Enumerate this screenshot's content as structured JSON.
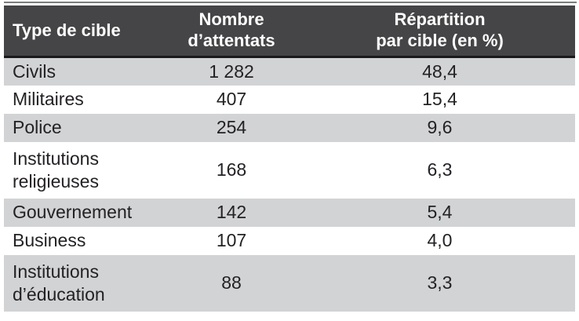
{
  "table": {
    "header": {
      "col1": {
        "line1": "Type de cible",
        "line2": ""
      },
      "col2": {
        "line1": "Nombre",
        "line2": "d’attentats"
      },
      "col3": {
        "line1": "Répartition",
        "line2": "par cible (en %)"
      }
    },
    "rows": [
      {
        "target": "Civils",
        "count": "1 282",
        "share": "48,4"
      },
      {
        "target": "Militaires",
        "count": "407",
        "share": "15,4"
      },
      {
        "target": "Police",
        "count": "254",
        "share": "9,6"
      },
      {
        "target": "Institutions religieuses",
        "count": "168",
        "share": "6,3"
      },
      {
        "target": "Gouvernement",
        "count": "142",
        "share": "5,4"
      },
      {
        "target": "Business",
        "count": "107",
        "share": "4,0"
      },
      {
        "target": "Institutions d’éducation",
        "count": "88",
        "share": "3,3"
      }
    ]
  },
  "colors": {
    "header_bg": "#454547",
    "header_text": "#ffffff",
    "header_border": "#1a1a1c",
    "row_bg": "#ffffff",
    "row_alt_bg": "#d2d3d5",
    "text": "#232124",
    "top_rule": "#7b7c7e"
  }
}
